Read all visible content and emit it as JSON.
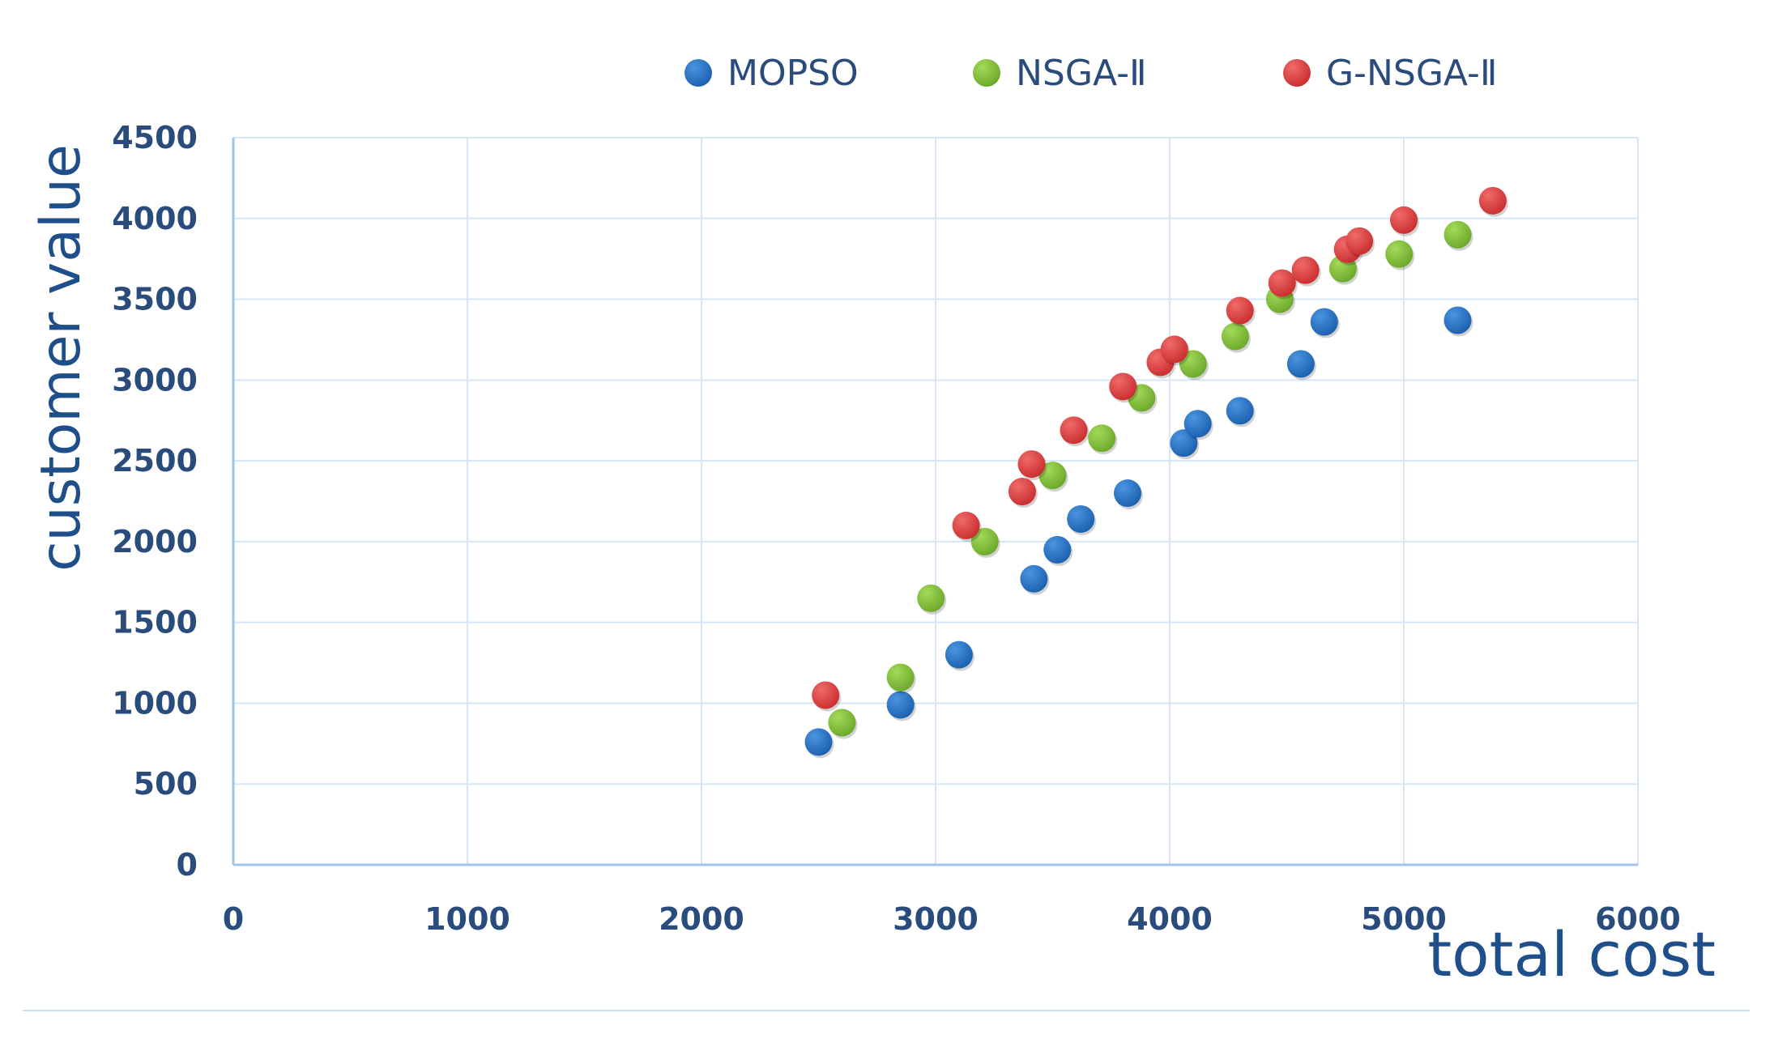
{
  "chart_data": {
    "type": "scatter",
    "title": "",
    "xlabel": "total cost",
    "ylabel": "customer value",
    "xlim": [
      0,
      6000
    ],
    "ylim": [
      0,
      4500
    ],
    "x_ticks": [
      "0",
      "1000",
      "2000",
      "3000",
      "4000",
      "5000",
      "6000"
    ],
    "y_ticks": [
      "0",
      "500",
      "1000",
      "1500",
      "2000",
      "2500",
      "3000",
      "3500",
      "4000",
      "4500"
    ],
    "grid": true,
    "legend_position": "top",
    "series": [
      {
        "name": "MOPSO",
        "color": "#1f6fc1",
        "points": [
          [
            2500,
            760
          ],
          [
            2850,
            990
          ],
          [
            3100,
            1300
          ],
          [
            3420,
            1770
          ],
          [
            3520,
            1950
          ],
          [
            3620,
            2140
          ],
          [
            3820,
            2300
          ],
          [
            4060,
            2610
          ],
          [
            4120,
            2730
          ],
          [
            4300,
            2810
          ],
          [
            4560,
            3100
          ],
          [
            4660,
            3360
          ],
          [
            5230,
            3370
          ]
        ]
      },
      {
        "name": "NSGA-Ⅱ",
        "color": "#7dbb2f",
        "points": [
          [
            2600,
            880
          ],
          [
            2850,
            1160
          ],
          [
            2980,
            1650
          ],
          [
            3210,
            2000
          ],
          [
            3500,
            2410
          ],
          [
            3710,
            2640
          ],
          [
            3880,
            2890
          ],
          [
            4100,
            3100
          ],
          [
            4280,
            3270
          ],
          [
            4470,
            3500
          ],
          [
            4740,
            3690
          ],
          [
            4980,
            3780
          ],
          [
            5230,
            3900
          ]
        ]
      },
      {
        "name": "G-NSGA-Ⅱ",
        "color": "#dc3c3c",
        "points": [
          [
            2530,
            1050
          ],
          [
            3130,
            2100
          ],
          [
            3370,
            2310
          ],
          [
            3410,
            2480
          ],
          [
            3590,
            2690
          ],
          [
            3800,
            2960
          ],
          [
            3960,
            3110
          ],
          [
            4020,
            3190
          ],
          [
            4300,
            3430
          ],
          [
            4480,
            3600
          ],
          [
            4580,
            3680
          ],
          [
            4760,
            3810
          ],
          [
            4810,
            3860
          ],
          [
            5000,
            3990
          ],
          [
            5380,
            4110
          ]
        ]
      }
    ]
  }
}
